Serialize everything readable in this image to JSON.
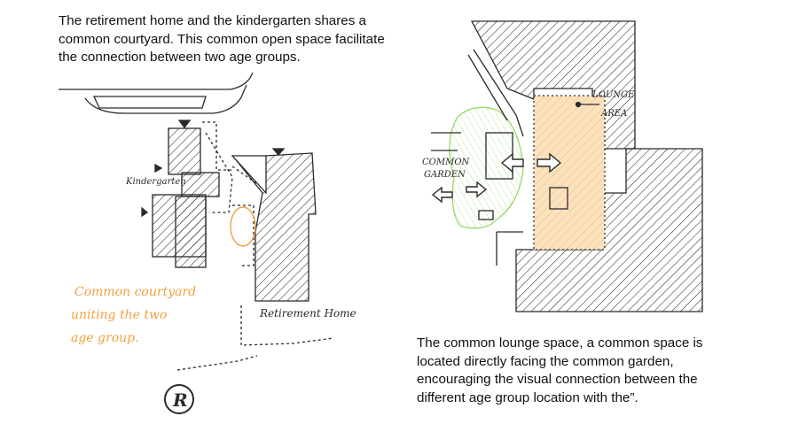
{
  "captions": {
    "top": "The retirement home and the kindergarten shares a common courtyard. This common open space facilitate the connection between two age groups.",
    "bottom": "The common lounge space, a common space is located directly facing the common garden, encouraging the visual connection between the different age group location with the”."
  },
  "left_sketch": {
    "kindergarten_label": "Kindergarten",
    "retirement_label": "Retirement Home",
    "courtyard_note": [
      "Common courtyard",
      "uniting the two",
      "age group."
    ],
    "north_symbol": "R"
  },
  "right_sketch": {
    "lounge_label": [
      "LOUNGE",
      "AREA"
    ],
    "garden_label": [
      "COMMON",
      "GARDEN"
    ]
  },
  "colors": {
    "ink": "#2a2a2a",
    "orange": "#f0a040",
    "orange_fill": "#fbe2bf",
    "green": "#9ad86a"
  }
}
